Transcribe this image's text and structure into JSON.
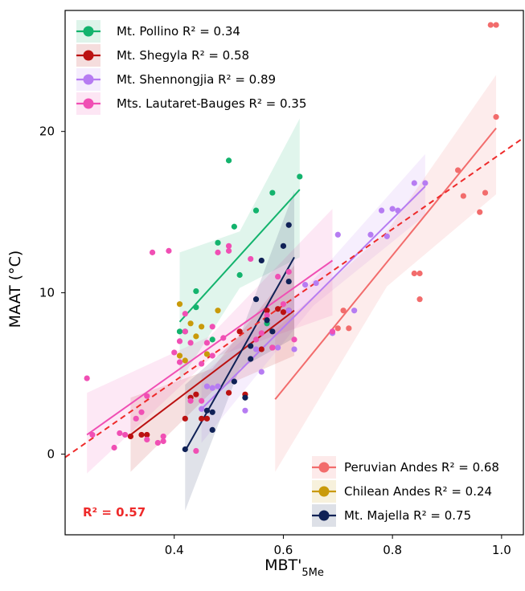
{
  "chart_data": {
    "type": "scatter",
    "xlabel": "MBT'",
    "xlabel_sub": "5Me",
    "ylabel": "MAAT (°C)",
    "xlim": [
      0.2,
      1.04
    ],
    "ylim": [
      -5,
      27.5
    ],
    "xticks": [
      0.4,
      0.6,
      0.8,
      1.0
    ],
    "xtick_labels": [
      "0.4",
      "0.6",
      "0.8",
      "1.0"
    ],
    "yticks": [
      0,
      10,
      20
    ],
    "ytick_labels": [
      "0",
      "10",
      "20"
    ],
    "grid": false,
    "overall_fit": {
      "label": "R² = 0.57",
      "color": "#ee2a2a",
      "x": [
        0.2,
        1.04
      ],
      "y": [
        -0.2,
        19.6
      ]
    },
    "legend_top": "top-left",
    "legend_bottom": "bottom-right",
    "series": [
      {
        "name": "Mt. Pollino",
        "label": "Mt. Pollino R² = 0.34",
        "color": "#13b36d",
        "points": [
          [
            0.41,
            7.6
          ],
          [
            0.42,
            7.6
          ],
          [
            0.44,
            10.1
          ],
          [
            0.44,
            9.1
          ],
          [
            0.47,
            7.1
          ],
          [
            0.48,
            13.1
          ],
          [
            0.5,
            18.2
          ],
          [
            0.51,
            14.1
          ],
          [
            0.52,
            11.1
          ],
          [
            0.55,
            15.1
          ],
          [
            0.57,
            8.1
          ],
          [
            0.58,
            16.2
          ],
          [
            0.63,
            17.2
          ]
        ],
        "fit": {
          "x": [
            0.41,
            0.63
          ],
          "y": [
            8.2,
            16.4
          ]
        },
        "band": {
          "x": [
            0.41,
            0.52,
            0.63
          ],
          "lo": [
            4.5,
            10.3,
            12.2
          ],
          "hi": [
            12.5,
            13.8,
            20.8
          ]
        }
      },
      {
        "name": "Mt. Shegyla",
        "label": "Mt. Shegyla R² = 0.58",
        "color": "#bb1111",
        "points": [
          [
            0.32,
            1.1
          ],
          [
            0.34,
            1.2
          ],
          [
            0.35,
            1.2
          ],
          [
            0.42,
            2.2
          ],
          [
            0.43,
            3.5
          ],
          [
            0.44,
            3.7
          ],
          [
            0.45,
            2.2
          ],
          [
            0.46,
            2.2
          ],
          [
            0.5,
            3.8
          ],
          [
            0.52,
            7.6
          ],
          [
            0.53,
            3.7
          ],
          [
            0.56,
            6.5
          ],
          [
            0.57,
            8.9
          ],
          [
            0.58,
            6.6
          ],
          [
            0.59,
            9.0
          ],
          [
            0.6,
            8.8
          ],
          [
            0.61,
            8.9
          ]
        ],
        "fit": {
          "x": [
            0.32,
            0.62
          ],
          "y": [
            1.2,
            8.9
          ]
        },
        "band": {
          "x": [
            0.32,
            0.47,
            0.62
          ],
          "lo": [
            -1.1,
            3.9,
            6.1
          ],
          "hi": [
            3.5,
            5.3,
            11.7
          ]
        }
      },
      {
        "name": "Mt. Shennongjia",
        "label": "Mt. Shennongjia R² = 0.89",
        "color": "#b67cf2",
        "points": [
          [
            0.45,
            2.8
          ],
          [
            0.46,
            4.2
          ],
          [
            0.47,
            4.1
          ],
          [
            0.48,
            4.2
          ],
          [
            0.53,
            2.7
          ],
          [
            0.55,
            6.5
          ],
          [
            0.56,
            5.1
          ],
          [
            0.59,
            6.6
          ],
          [
            0.61,
            8.9
          ],
          [
            0.62,
            6.5
          ],
          [
            0.64,
            10.5
          ],
          [
            0.66,
            10.6
          ],
          [
            0.69,
            7.5
          ],
          [
            0.7,
            13.6
          ],
          [
            0.73,
            8.9
          ],
          [
            0.76,
            13.6
          ],
          [
            0.78,
            15.1
          ],
          [
            0.79,
            13.5
          ],
          [
            0.8,
            15.2
          ],
          [
            0.81,
            15.1
          ],
          [
            0.84,
            16.8
          ],
          [
            0.86,
            16.8
          ]
        ],
        "fit": {
          "x": [
            0.45,
            0.86
          ],
          "y": [
            2.8,
            16.6
          ]
        },
        "band": {
          "x": [
            0.45,
            0.655,
            0.86
          ],
          "lo": [
            0.7,
            9.2,
            14.8
          ],
          "hi": [
            4.9,
            10.8,
            18.6
          ]
        }
      },
      {
        "name": "Mts. Lautaret-Bauges",
        "label": "Mts. Lautaret-Bauges R² = 0.35",
        "color": "#f04fb4",
        "points": [
          [
            0.24,
            4.7
          ],
          [
            0.25,
            1.2
          ],
          [
            0.29,
            0.4
          ],
          [
            0.3,
            1.3
          ],
          [
            0.31,
            1.2
          ],
          [
            0.33,
            2.2
          ],
          [
            0.34,
            2.6
          ],
          [
            0.35,
            0.9
          ],
          [
            0.35,
            3.6
          ],
          [
            0.36,
            12.5
          ],
          [
            0.37,
            0.7
          ],
          [
            0.38,
            1.1
          ],
          [
            0.38,
            0.8
          ],
          [
            0.39,
            12.6
          ],
          [
            0.4,
            6.3
          ],
          [
            0.41,
            7.0
          ],
          [
            0.41,
            5.7
          ],
          [
            0.42,
            8.7
          ],
          [
            0.42,
            7.6
          ],
          [
            0.43,
            3.3
          ],
          [
            0.43,
            6.9
          ],
          [
            0.44,
            0.2
          ],
          [
            0.45,
            5.6
          ],
          [
            0.45,
            3.3
          ],
          [
            0.46,
            6.9
          ],
          [
            0.47,
            7.9
          ],
          [
            0.47,
            6.1
          ],
          [
            0.48,
            12.5
          ],
          [
            0.49,
            7.2
          ],
          [
            0.5,
            12.9
          ],
          [
            0.5,
            12.6
          ],
          [
            0.54,
            12.1
          ],
          [
            0.55,
            7.1
          ],
          [
            0.56,
            7.5
          ],
          [
            0.57,
            8.6
          ],
          [
            0.58,
            6.6
          ],
          [
            0.59,
            11.0
          ],
          [
            0.6,
            9.3
          ],
          [
            0.61,
            11.3
          ],
          [
            0.62,
            7.1
          ],
          [
            0.69,
            7.6
          ]
        ],
        "fit": {
          "x": [
            0.24,
            0.69
          ],
          "y": [
            1.2,
            12.0
          ]
        },
        "band": {
          "x": [
            0.24,
            0.465,
            0.69
          ],
          "lo": [
            -1.2,
            5.9,
            8.6
          ],
          "hi": [
            3.8,
            7.3,
            15.2
          ]
        }
      },
      {
        "name": "Peruvian Andes",
        "label": "Peruvian Andes R² = 0.68",
        "color": "#f26c6c",
        "points": [
          [
            0.7,
            7.8
          ],
          [
            0.71,
            8.9
          ],
          [
            0.72,
            7.8
          ],
          [
            0.84,
            11.2
          ],
          [
            0.85,
            9.6
          ],
          [
            0.85,
            11.2
          ],
          [
            0.92,
            17.6
          ],
          [
            0.93,
            16.0
          ],
          [
            0.96,
            15.0
          ],
          [
            0.97,
            16.2
          ],
          [
            0.98,
            26.6
          ],
          [
            0.99,
            26.6
          ],
          [
            0.99,
            20.9
          ]
        ],
        "fit": {
          "x": [
            0.585,
            0.99
          ],
          "y": [
            3.4,
            20.2
          ]
        },
        "band": {
          "x": [
            0.585,
            0.79,
            0.99
          ],
          "lo": [
            -1.1,
            10.4,
            16.1
          ],
          "hi": [
            7.7,
            13.8,
            23.5
          ]
        }
      },
      {
        "name": "Chilean Andes",
        "label": "Chilean Andes R² = 0.24",
        "color": "#c99a0a",
        "points": [
          [
            0.41,
            9.3
          ],
          [
            0.41,
            6.1
          ],
          [
            0.42,
            5.8
          ],
          [
            0.43,
            8.1
          ],
          [
            0.44,
            7.3
          ],
          [
            0.45,
            7.9
          ],
          [
            0.46,
            6.2
          ],
          [
            0.48,
            8.9
          ]
        ],
        "fit": null,
        "band": null
      },
      {
        "name": "Mt. Majella",
        "label": "Mt. Majella R² = 0.75",
        "color": "#0f2156",
        "points": [
          [
            0.42,
            0.3
          ],
          [
            0.46,
            2.7
          ],
          [
            0.47,
            1.5
          ],
          [
            0.47,
            2.6
          ],
          [
            0.51,
            4.5
          ],
          [
            0.53,
            3.5
          ],
          [
            0.54,
            5.9
          ],
          [
            0.54,
            6.7
          ],
          [
            0.55,
            9.6
          ],
          [
            0.56,
            12.0
          ],
          [
            0.57,
            8.3
          ],
          [
            0.58,
            7.6
          ],
          [
            0.6,
            12.9
          ],
          [
            0.61,
            14.2
          ],
          [
            0.61,
            10.7
          ]
        ],
        "fit": {
          "x": [
            0.42,
            0.62
          ],
          "y": [
            0.2,
            12.2
          ]
        },
        "band": {
          "x": [
            0.42,
            0.52,
            0.62
          ],
          "lo": [
            -3.5,
            5.3,
            7.2
          ],
          "hi": [
            4.3,
            7.3,
            16.3
          ]
        }
      }
    ]
  }
}
